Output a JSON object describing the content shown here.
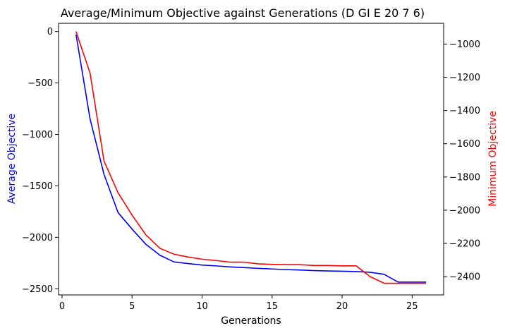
{
  "chart_data": {
    "type": "line",
    "title": "Average/Minimum Objective against Generations (D GI E 20 7 6)",
    "xlabel": "Generations",
    "ylabel_left": "Average Objective",
    "ylabel_right": "Minimum Objective",
    "xlim": [
      -0.25,
      27.25
    ],
    "ylim_left": [
      -2560,
      80
    ],
    "ylim_right": [
      -2510,
      -875
    ],
    "x_ticks": [
      0,
      5,
      10,
      15,
      20,
      25
    ],
    "y_ticks_left": [
      0,
      -500,
      -1000,
      -1500,
      -2000,
      -2500
    ],
    "y_ticks_right": [
      -1000,
      -1200,
      -1400,
      -1600,
      -1800,
      -2000,
      -2200,
      -2400
    ],
    "tick_labels": {
      "x": [
        "0",
        "5",
        "10",
        "15",
        "20",
        "25"
      ],
      "left": [
        "0",
        "−500",
        "−1000",
        "−1500",
        "−2000",
        "−2500"
      ],
      "right": [
        "−1000",
        "−1200",
        "−1400",
        "−1600",
        "−1800",
        "−2000",
        "−2200",
        "−2400"
      ]
    },
    "grid": false,
    "series": [
      {
        "axis": "left",
        "color": "#0000ff",
        "x": [
          1,
          2,
          3,
          4,
          5,
          6,
          7,
          8,
          9,
          10,
          11,
          12,
          13,
          14,
          15,
          16,
          17,
          18,
          19,
          20,
          21,
          22,
          23,
          24,
          25,
          26
        ],
        "y": [
          -30,
          -850,
          -1390,
          -1760,
          -1920,
          -2070,
          -2175,
          -2240,
          -2255,
          -2270,
          -2278,
          -2288,
          -2295,
          -2302,
          -2308,
          -2314,
          -2318,
          -2324,
          -2327,
          -2330,
          -2333,
          -2340,
          -2360,
          -2435,
          -2435,
          -2435
        ]
      },
      {
        "axis": "right",
        "color": "#ff0000",
        "x": [
          1,
          2,
          3,
          4,
          5,
          6,
          7,
          8,
          9,
          10,
          11,
          12,
          13,
          14,
          15,
          16,
          17,
          18,
          19,
          20,
          21,
          22,
          23,
          24,
          25,
          26
        ],
        "y": [
          -925,
          -1175,
          -1705,
          -1895,
          -2030,
          -2150,
          -2230,
          -2265,
          -2282,
          -2295,
          -2303,
          -2313,
          -2313,
          -2323,
          -2326,
          -2328,
          -2328,
          -2333,
          -2333,
          -2335,
          -2335,
          -2400,
          -2440,
          -2440,
          -2440,
          -2440
        ]
      }
    ]
  }
}
